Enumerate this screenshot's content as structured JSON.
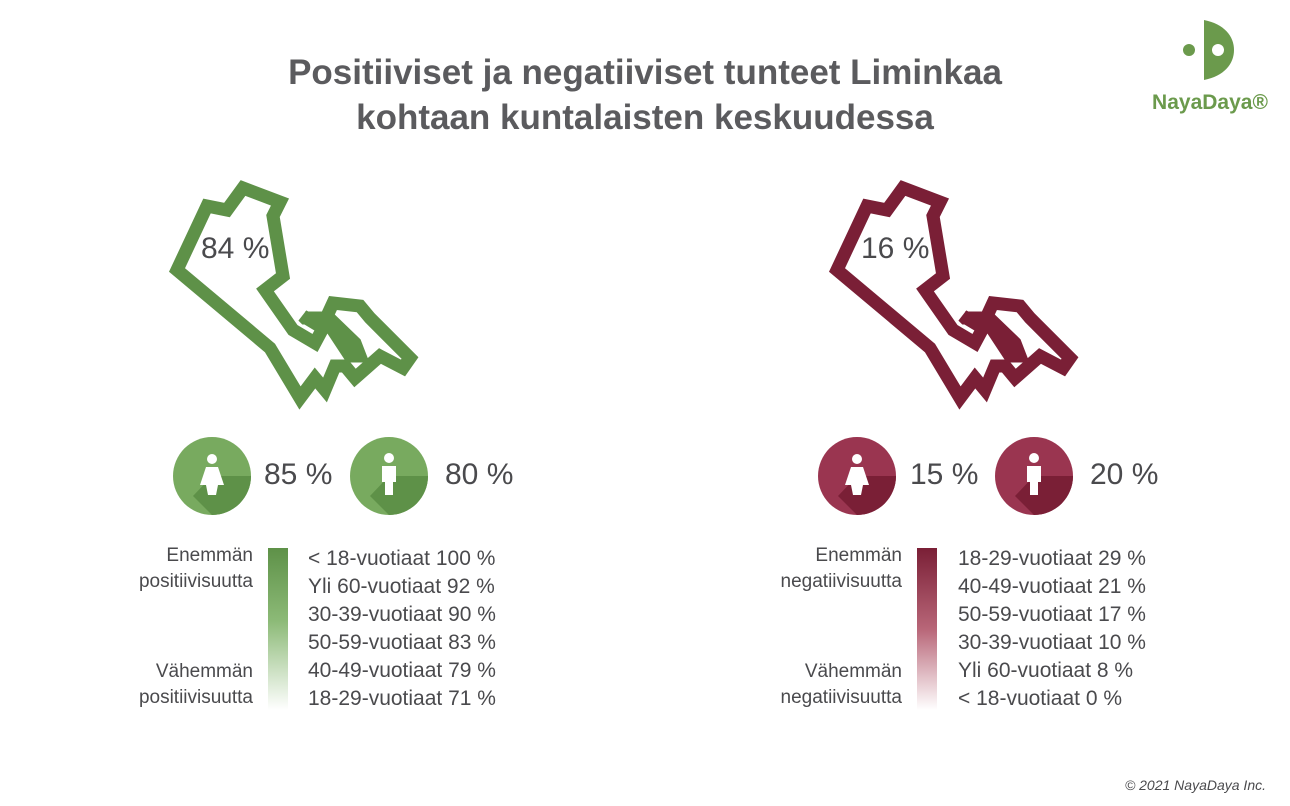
{
  "chart_data": {
    "type": "infographic",
    "title_lines": [
      "Positiiviset ja negatiiviset tunteet Liminkaa",
      "kohtaan kuntalaisten keskuudessa"
    ],
    "logo": "NayaDaya®",
    "copyright": "© 2021 NayaDaya Inc.",
    "colors": {
      "positive": "#5e9148",
      "negative": "#7a1f36"
    },
    "panels": [
      {
        "id": "positive",
        "total_label": "84 %",
        "total_value": 84,
        "women_label": "85 %",
        "women_value": 85,
        "men_label": "80 %",
        "men_value": 80,
        "scale_top": [
          "Enemmän",
          "positiivisuutta"
        ],
        "scale_bottom": [
          "Vähemmän",
          "positiivisuutta"
        ],
        "ranking": [
          {
            "label": "< 18-vuotiaat 100 %",
            "value": 100
          },
          {
            "label": "Yli 60-vuotiaat 92 %",
            "value": 92
          },
          {
            "label": "30-39-vuotiaat 90 %",
            "value": 90
          },
          {
            "label": "50-59-vuotiaat 83 %",
            "value": 83
          },
          {
            "label": "40-49-vuotiaat 79 %",
            "value": 79
          },
          {
            "label": "18-29-vuotiaat 71 %",
            "value": 71
          }
        ]
      },
      {
        "id": "negative",
        "total_label": "16 %",
        "total_value": 16,
        "women_label": "15 %",
        "women_value": 15,
        "men_label": "20 %",
        "men_value": 20,
        "scale_top": [
          "Enemmän",
          "negatiivisuutta"
        ],
        "scale_bottom": [
          "Vähemmän",
          "negatiivisuutta"
        ],
        "ranking": [
          {
            "label": "18-29-vuotiaat 29 %",
            "value": 29
          },
          {
            "label": "40-49-vuotiaat 21 %",
            "value": 21
          },
          {
            "label": "50-59-vuotiaat 17 %",
            "value": 17
          },
          {
            "label": "30-39-vuotiaat 10 %",
            "value": 10
          },
          {
            "label": "Yli 60-vuotiaat 8 %",
            "value": 8
          },
          {
            "label": "< 18-vuotiaat 0 %",
            "value": 0
          }
        ]
      }
    ]
  }
}
